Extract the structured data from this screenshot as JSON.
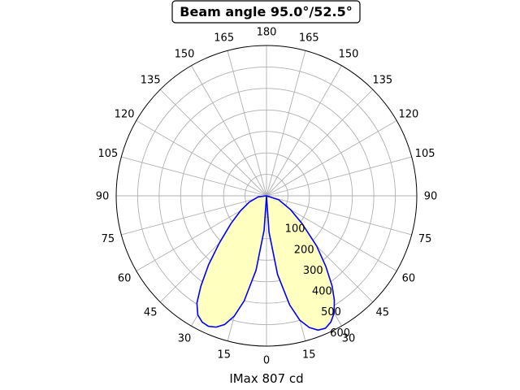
{
  "chart_data": {
    "type": "polar-line",
    "title": "Beam angle 95.0°/52.5°",
    "xlabel": "IMax 807 cd",
    "angle_tick_labels": [
      "180",
      "165",
      "150",
      "135",
      "120",
      "105",
      "90",
      "75",
      "60",
      "45",
      "30",
      "15",
      "0",
      "15",
      "30",
      "45",
      "60",
      "75",
      "90",
      "105",
      "120",
      "135",
      "150",
      "165"
    ],
    "radial_tick_labels": [
      "100",
      "200",
      "300",
      "400",
      "500",
      "600"
    ],
    "radial_ticks": [
      100,
      200,
      300,
      400,
      500,
      600
    ],
    "rlim": [
      0,
      700
    ],
    "grid": true,
    "colors": {
      "line": "#0000ff",
      "fill": "#ffffc0",
      "grid": "#b0b0b0",
      "spine": "#000000"
    },
    "series": [
      {
        "points": [
          {
            "angle": 0,
            "value": 0
          },
          {
            "angle": -4,
            "value": 160
          },
          {
            "angle": -8,
            "value": 350
          },
          {
            "angle": -12,
            "value": 500
          },
          {
            "angle": -15,
            "value": 580
          },
          {
            "angle": -18,
            "value": 630
          },
          {
            "angle": -21,
            "value": 655
          },
          {
            "angle": -24,
            "value": 665
          },
          {
            "angle": -27,
            "value": 660
          },
          {
            "angle": -30,
            "value": 640
          },
          {
            "angle": -33,
            "value": 595
          },
          {
            "angle": -36,
            "value": 520
          },
          {
            "angle": -40,
            "value": 420
          },
          {
            "angle": -45,
            "value": 310
          },
          {
            "angle": -52,
            "value": 210
          },
          {
            "angle": -60,
            "value": 140
          },
          {
            "angle": -70,
            "value": 85
          },
          {
            "angle": -82,
            "value": 40
          },
          {
            "angle": -90,
            "value": 0
          },
          {
            "angle": 90,
            "value": 0
          },
          {
            "angle": 72,
            "value": 60
          },
          {
            "angle": 60,
            "value": 130
          },
          {
            "angle": 52,
            "value": 210
          },
          {
            "angle": 45,
            "value": 330
          },
          {
            "angle": 40,
            "value": 430
          },
          {
            "angle": 36,
            "value": 520
          },
          {
            "angle": 33,
            "value": 580
          },
          {
            "angle": 30,
            "value": 630
          },
          {
            "angle": 27,
            "value": 660
          },
          {
            "angle": 24,
            "value": 675
          },
          {
            "angle": 21,
            "value": 670
          },
          {
            "angle": 18,
            "value": 645
          },
          {
            "angle": 15,
            "value": 600
          },
          {
            "angle": 12,
            "value": 520
          },
          {
            "angle": 8,
            "value": 370
          },
          {
            "angle": 4,
            "value": 170
          },
          {
            "angle": 0,
            "value": 0
          }
        ]
      }
    ]
  }
}
